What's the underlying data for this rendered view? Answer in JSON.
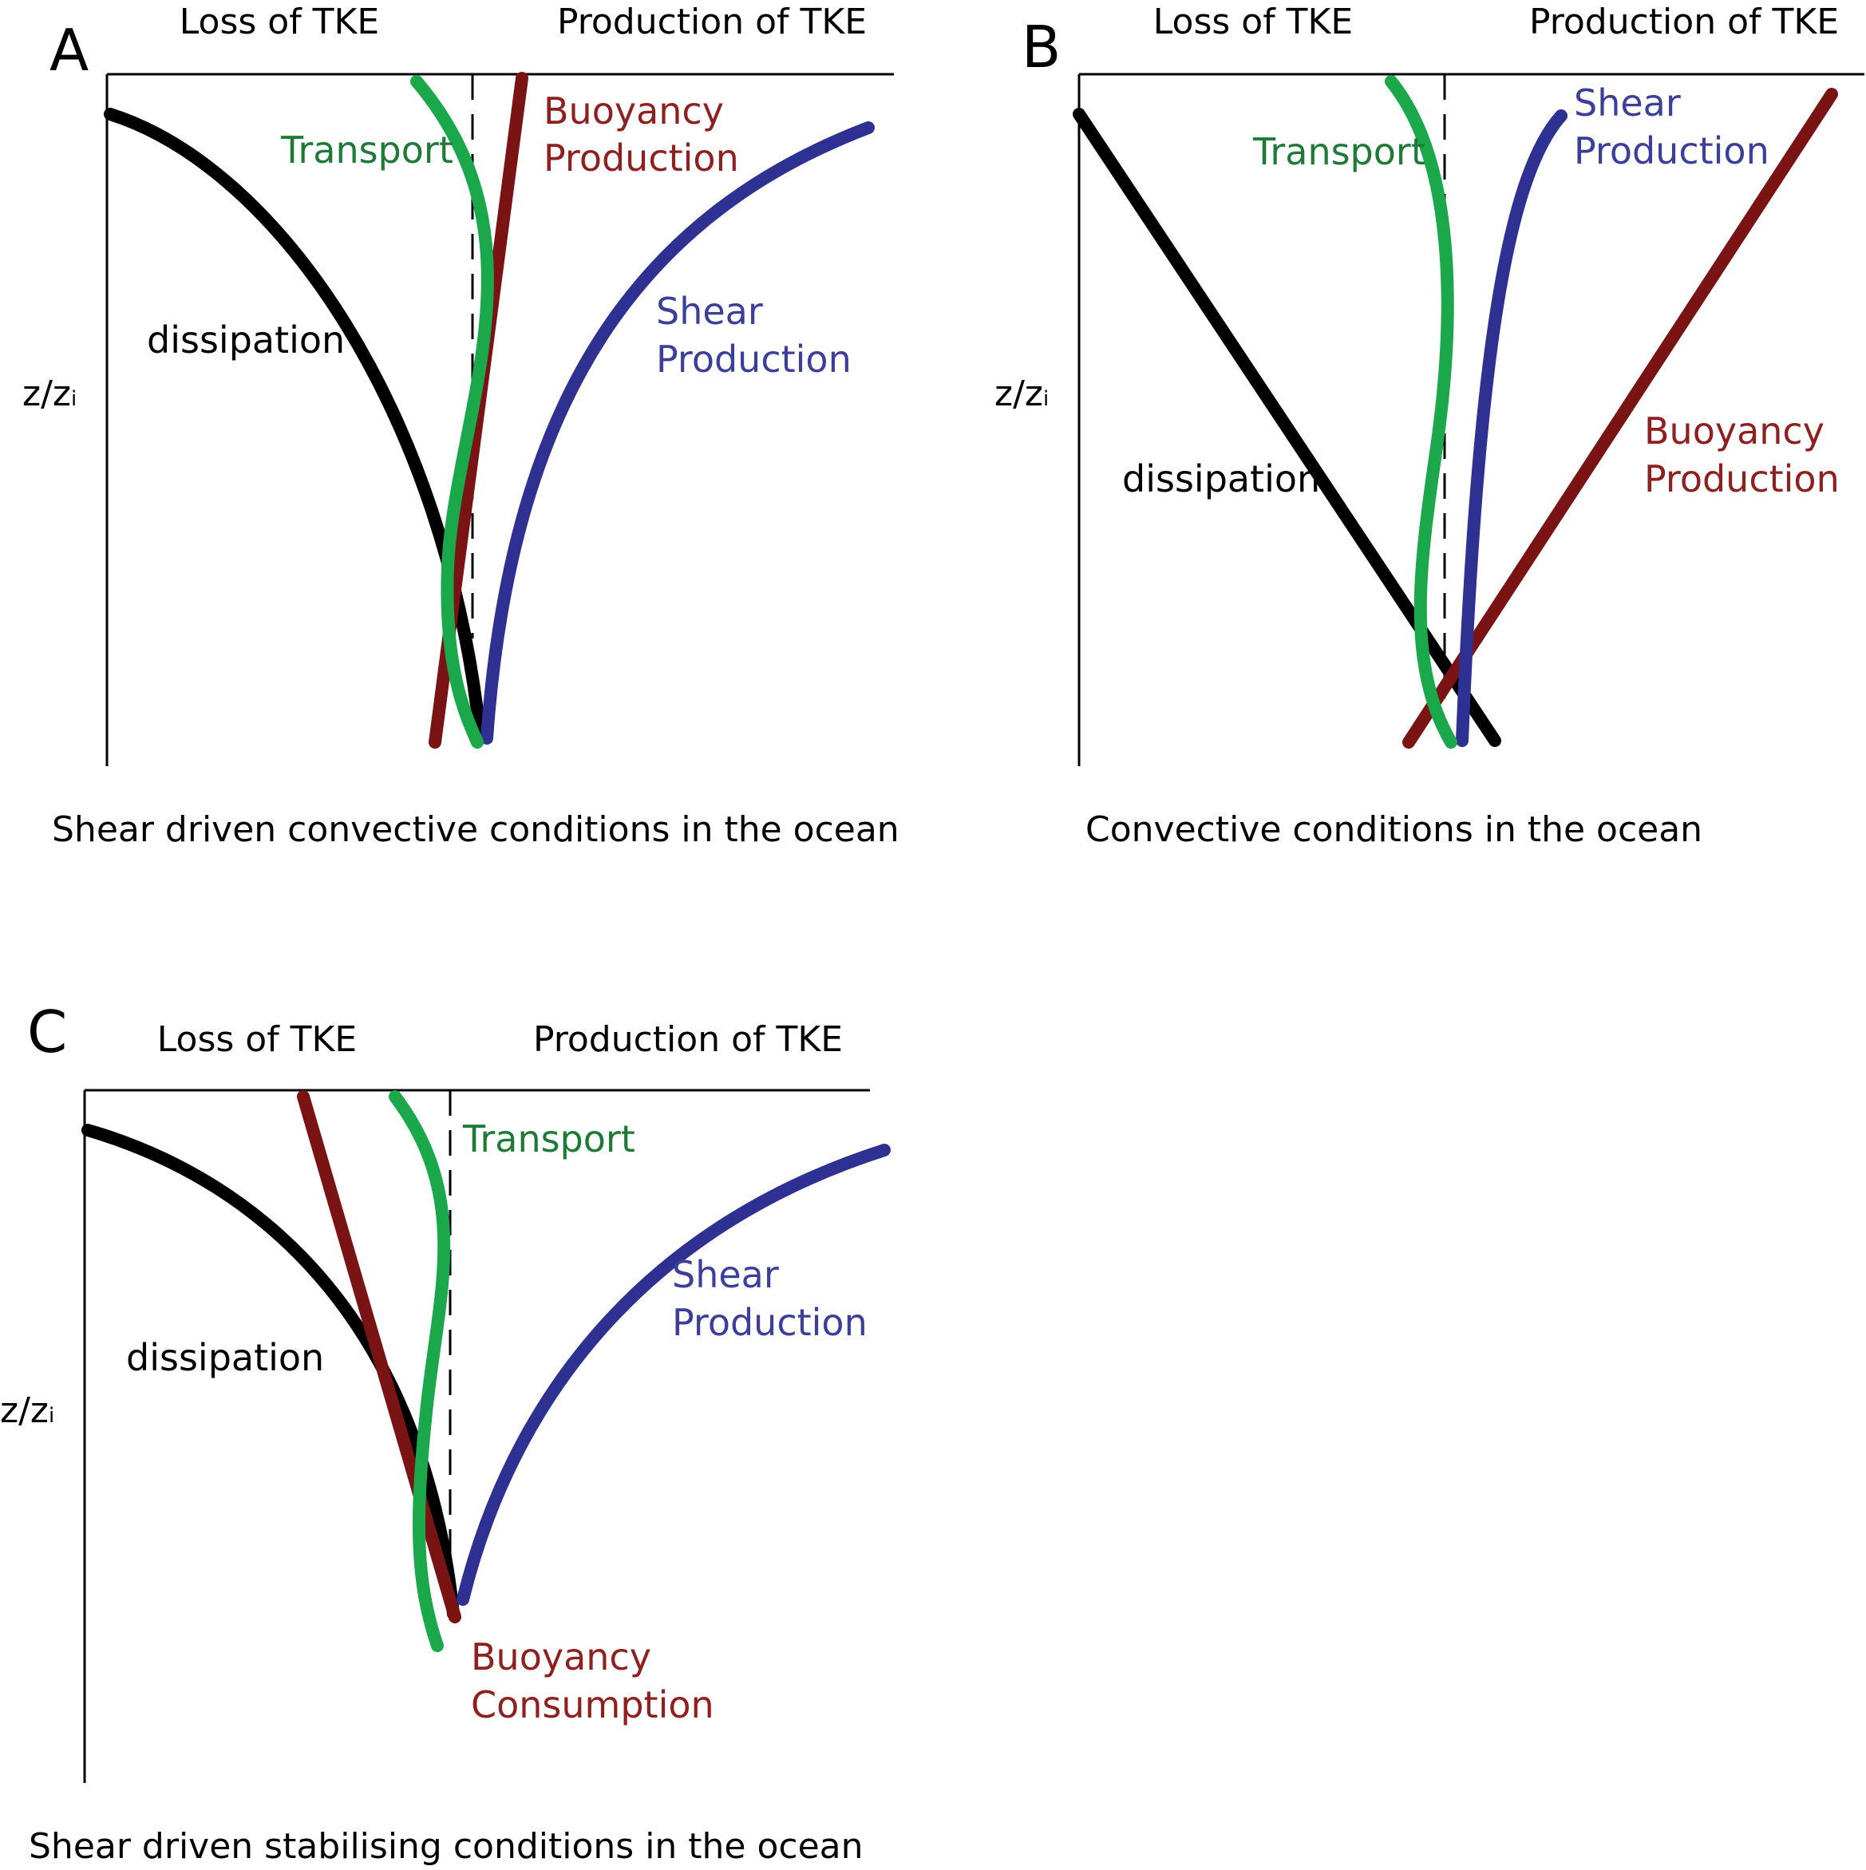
{
  "colors": {
    "dissipation": "#000000",
    "transport_line": "#1aa84a",
    "transport_text": "#1e7a36",
    "buoyancy_line": "#7a1414",
    "buoyancy_text": "#8e2020",
    "shear_line": "#2e3192",
    "shear_text": "#3b3f9a"
  },
  "panels": [
    {
      "letter": "A",
      "header_left": "Loss of TKE",
      "header_right": "Production of TKE",
      "y_axis_label": "z/z",
      "y_axis_subscript": "i",
      "caption": "Shear driven convective conditions in the ocean",
      "terms": {
        "dissipation": "dissipation",
        "transport": "Transport",
        "buoyancy_line1": "Buoyancy",
        "buoyancy_line2": "Production",
        "shear_line1": "Shear",
        "shear_line2": "Production"
      }
    },
    {
      "letter": "B",
      "header_left": "Loss of TKE",
      "header_right": "Production of TKE",
      "y_axis_label": "z/z",
      "y_axis_subscript": "i",
      "caption": "Convective conditions in the ocean",
      "terms": {
        "dissipation": "dissipation",
        "transport": "Transport",
        "buoyancy_line1": "Buoyancy",
        "buoyancy_line2": "Production",
        "shear_line1": "Shear",
        "shear_line2": "Production"
      }
    },
    {
      "letter": "C",
      "header_left": "Loss of TKE",
      "header_right": "Production of TKE",
      "y_axis_label": "z/z",
      "y_axis_subscript": "i",
      "caption": "Shear driven stabilising conditions in the ocean",
      "terms": {
        "dissipation": "dissipation",
        "transport": "Transport",
        "buoyancy_line1": "Buoyancy",
        "buoyancy_line2": "Consumption",
        "shear_line1": "Shear",
        "shear_line2": "Production"
      }
    }
  ]
}
